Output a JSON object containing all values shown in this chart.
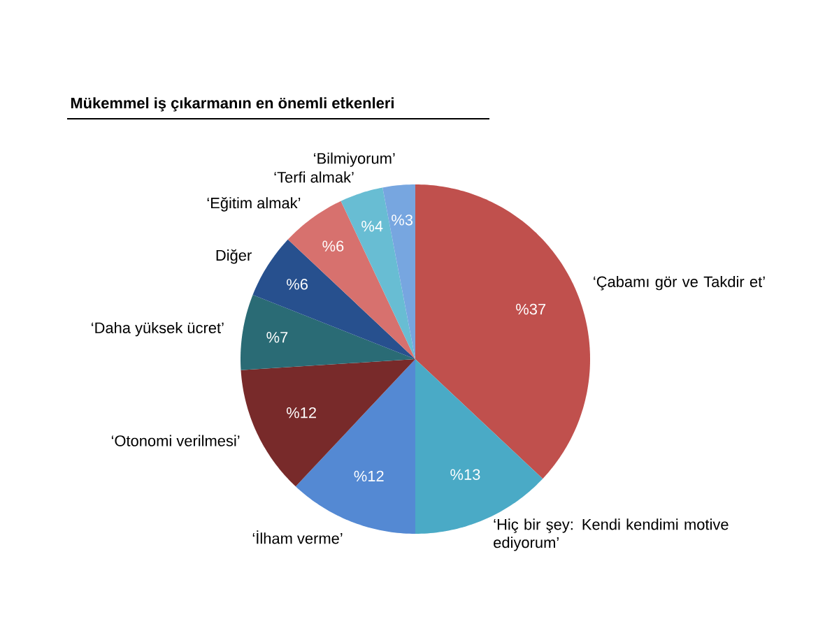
{
  "chart_data": {
    "type": "pie",
    "title": "Mükemmel iş çıkarmanın en önemli etkenleri",
    "categories": [
      "‘Çabamı gör ve Takdir et’",
      "‘Hiç bir şey: Kendi kendimi motive ediyorum’",
      "‘İlham verme’",
      "‘Otonomi verilmesi’",
      "‘Daha yüksek ücret’",
      "Diğer",
      "‘Eğitim almak’",
      "‘Terfi almak’",
      "‘Bilmiyorum’"
    ],
    "values": [
      37,
      13,
      12,
      12,
      7,
      6,
      6,
      4,
      3
    ],
    "colors": [
      "#c0504d",
      "#4aaac6",
      "#5489d3",
      "#782a2a",
      "#2a6b75",
      "#27508e",
      "#d7716e",
      "#68bdd3",
      "#77a6e0"
    ],
    "value_labels": [
      "%37",
      "%13",
      "%12",
      "%12",
      "%7",
      "%6",
      "%6",
      "%4",
      "%3"
    ]
  }
}
